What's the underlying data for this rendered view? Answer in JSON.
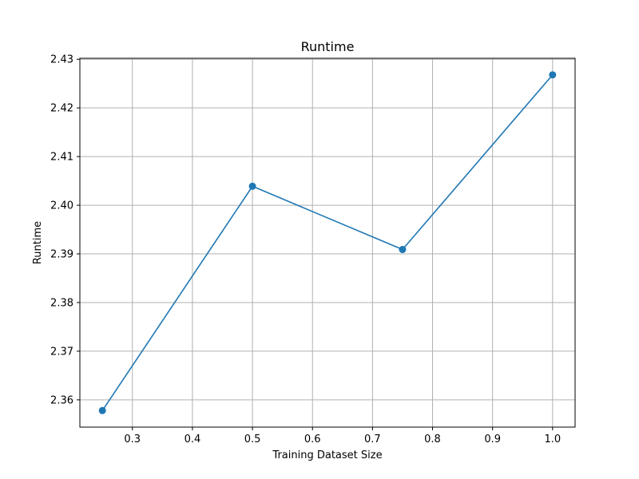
{
  "chart_data": {
    "type": "line",
    "title": "Runtime",
    "xlabel": "Training Dataset Size",
    "ylabel": "Runtime",
    "x": [
      0.25,
      0.5,
      0.75,
      1.0
    ],
    "series": [
      {
        "values": [
          2.3578,
          2.4039,
          2.3909,
          2.4268
        ],
        "color": "#1f77b4",
        "marker": "circle"
      }
    ],
    "xlim": [
      0.2125,
      1.0375
    ],
    "ylim": [
      2.3544,
      2.4302
    ],
    "xticks": [
      "0.3",
      "0.4",
      "0.5",
      "0.6",
      "0.7",
      "0.8",
      "0.9",
      "1.0"
    ],
    "yticks": [
      "2.36",
      "2.37",
      "2.38",
      "2.39",
      "2.40",
      "2.41",
      "2.42",
      "2.43"
    ],
    "grid": true,
    "colors": {
      "grid": "#b0b0b0",
      "axes": "#000000"
    }
  }
}
